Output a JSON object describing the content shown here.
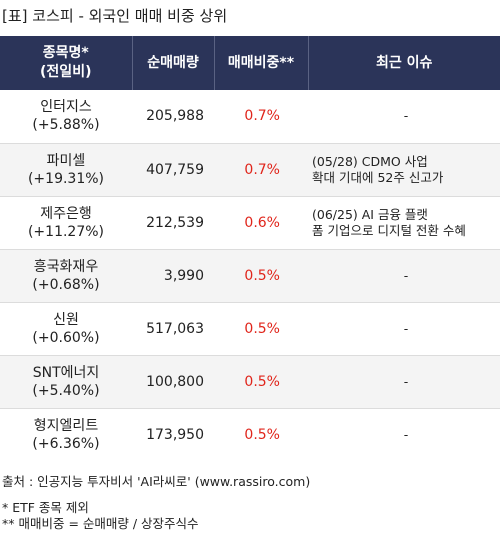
{
  "title": "[표] 코스피 - 외국인 매매 비중 상위",
  "headers": {
    "col1_line1": "종목명*",
    "col1_line2": "(전일비)",
    "col2": "순매매량",
    "col3": "매매비중**",
    "col4": "최근 이슈"
  },
  "rows": [
    {
      "name": "인터지스",
      "change": "(+5.88%)",
      "volume": "205,988",
      "ratio": "0.7%",
      "issue1": "-",
      "issue2": ""
    },
    {
      "name": "파미셀",
      "change": "(+19.31%)",
      "volume": "407,759",
      "ratio": "0.7%",
      "issue1": "(05/28) CDMO 사업",
      "issue2": "확대 기대에 52주 신고가"
    },
    {
      "name": "제주은행",
      "change": "(+11.27%)",
      "volume": "212,539",
      "ratio": "0.6%",
      "issue1": "(06/25) AI 금융 플랫",
      "issue2": "폼 기업으로 디지털 전환 수혜"
    },
    {
      "name": "흥국화재우",
      "change": "(+0.68%)",
      "volume": "3,990",
      "ratio": "0.5%",
      "issue1": "-",
      "issue2": ""
    },
    {
      "name": "신원",
      "change": "(+0.60%)",
      "volume": "517,063",
      "ratio": "0.5%",
      "issue1": "-",
      "issue2": ""
    },
    {
      "name": "SNT에너지",
      "change": "(+5.40%)",
      "volume": "100,800",
      "ratio": "0.5%",
      "issue1": "-",
      "issue2": ""
    },
    {
      "name": "형지엘리트",
      "change": "(+6.36%)",
      "volume": "173,950",
      "ratio": "0.5%",
      "issue1": "-",
      "issue2": ""
    }
  ],
  "footer": {
    "source": "출처 : 인공지능 투자비서 'AI라씨로' (www.rassiro.com)",
    "note1": "* ETF 종목 제외",
    "note2": "** 매매비중 = 순매매량 / 상장주식수"
  },
  "colors": {
    "header_bg": "#2b3459",
    "header_text": "#ffffff",
    "ratio_text": "#e0251b",
    "row_alt_bg": "#f4f4f4"
  }
}
